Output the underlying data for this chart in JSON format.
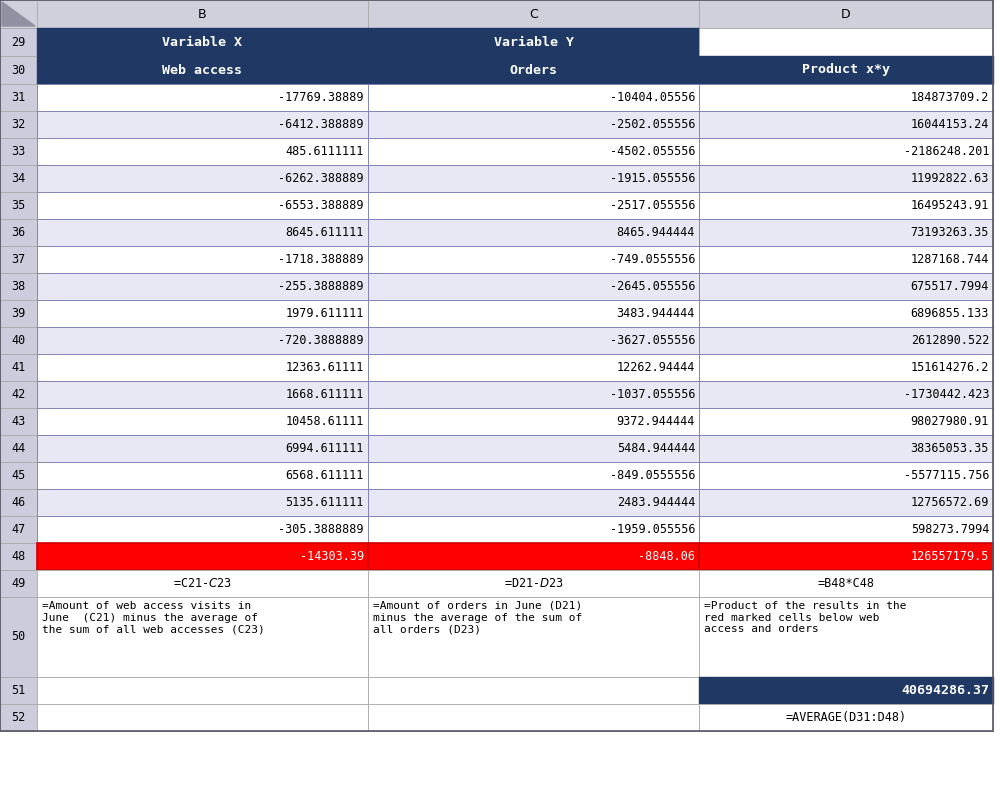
{
  "col_letters": [
    "B",
    "C",
    "D"
  ],
  "header_row29": [
    "Variable X",
    "Variable Y",
    ""
  ],
  "header_row30": [
    "Web access",
    "Orders",
    "Product x*y"
  ],
  "data_rows": [
    [
      "-17769.38889",
      "-10404.05556",
      "184873709.2"
    ],
    [
      "-6412.388889",
      "-2502.055556",
      "16044153.24"
    ],
    [
      "485.6111111",
      "-4502.055556",
      "-2186248.201"
    ],
    [
      "-6262.388889",
      "-1915.055556",
      "11992822.63"
    ],
    [
      "-6553.388889",
      "-2517.055556",
      "16495243.91"
    ],
    [
      "8645.611111",
      "8465.944444",
      "73193263.35"
    ],
    [
      "-1718.388889",
      "-749.0555556",
      "1287168.744"
    ],
    [
      "-255.3888889",
      "-2645.055556",
      "675517.7994"
    ],
    [
      "1979.611111",
      "3483.944444",
      "6896855.133"
    ],
    [
      "-720.3888889",
      "-3627.055556",
      "2612890.522"
    ],
    [
      "12363.61111",
      "12262.94444",
      "151614276.2"
    ],
    [
      "1668.611111",
      "-1037.055556",
      "-1730442.423"
    ],
    [
      "10458.61111",
      "9372.944444",
      "98027980.91"
    ],
    [
      "6994.611111",
      "5484.944444",
      "38365053.35"
    ],
    [
      "6568.611111",
      "-849.0555556",
      "-5577115.756"
    ],
    [
      "5135.611111",
      "2483.944444",
      "12756572.69"
    ],
    [
      "-305.3888889",
      "-1959.055556",
      "598273.7994"
    ]
  ],
  "row48": [
    "-14303.39",
    "-8848.06",
    "126557179.5"
  ],
  "row49": [
    "=C21-$C$23",
    "=D21-$D$23",
    "=B48*C48"
  ],
  "row50_text": [
    "=Amount of web access visits in\nJune  (C21) minus the average of\nthe sum of all web accesses (C23)",
    "=Amount of orders in June (D21)\nminus the average of the sum of\nall orders (D23)",
    "=Product of the results in the\nred marked cells below web\naccess and orders"
  ],
  "row51_val": "40694286.37",
  "row52_val": "=AVERAGE(D31:D48)",
  "header_bg": "#1F3864",
  "header_text": "#FFFFFF",
  "row_bg_light": "#E8E8F4",
  "row_bg_white": "#FFFFFF",
  "row48_bg": "#FF0000",
  "row48_text": "#FFFFFF",
  "row51_bg": "#1F3864",
  "row51_text": "#FFFFFF",
  "border_dark": "#1F3864",
  "border_mid": "#7A7AB0",
  "border_light": "#AAAAAA",
  "idx_bg": "#CCCCDD",
  "idx_text": "#000000",
  "col_hdr_bg": "#D0D0DC"
}
